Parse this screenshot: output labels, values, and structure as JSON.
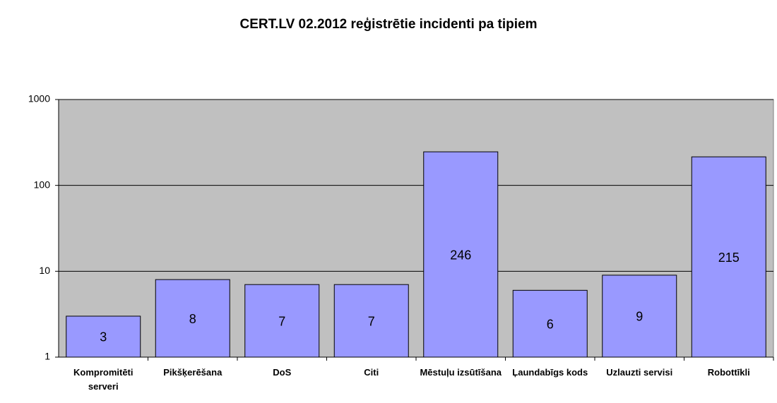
{
  "chart_data": {
    "type": "bar",
    "title": "CERT.LV 02.2012 reģistrētie incidenti pa tipiem",
    "categories": [
      "Kompromitēti serveri",
      "Pikšķerēšana",
      "DoS",
      "Citi",
      "Mēstuļu izsūtīšana",
      "Ļaundabīgs kods",
      "Uzlauzti servisi",
      "Robottīkli"
    ],
    "values": [
      3,
      8,
      7,
      7,
      246,
      6,
      9,
      215
    ],
    "color": "#9999ff",
    "ylim": [
      1,
      1000
    ],
    "yticks": [
      1,
      10,
      100,
      1000
    ],
    "log_scale": true,
    "grid": true
  }
}
